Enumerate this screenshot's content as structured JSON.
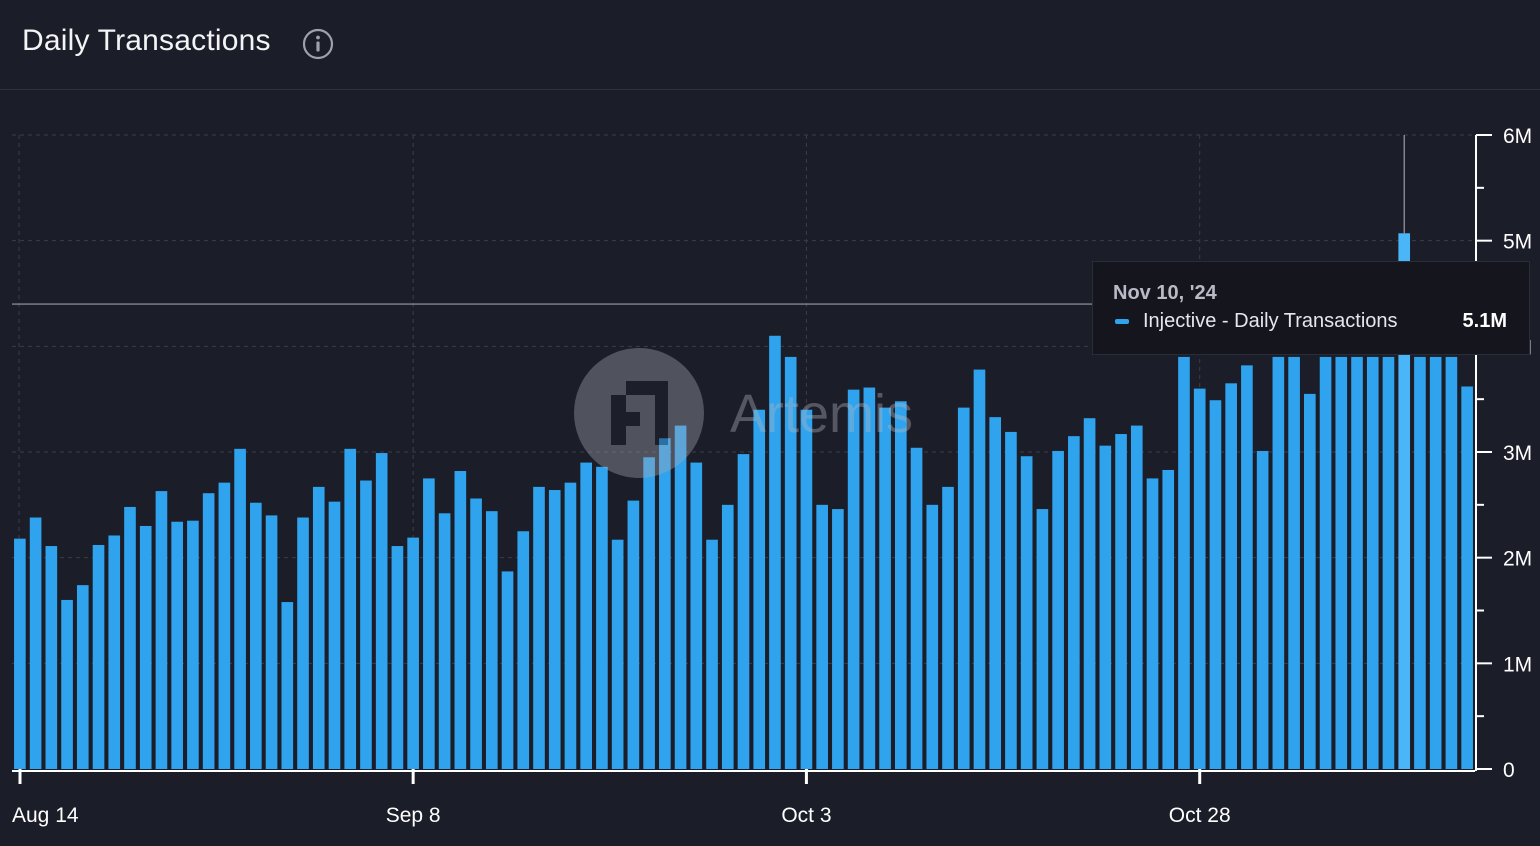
{
  "header": {
    "title": "Daily Transactions",
    "info_icon": "info-icon"
  },
  "watermark": {
    "text": "Artemis",
    "icon": "artemis-logo-icon"
  },
  "tooltip": {
    "date": "Nov 10, '24",
    "series_label": "Injective - Daily Transactions",
    "value": "5.1M"
  },
  "colors": {
    "background": "#1b1d29",
    "bar": "#2fa3ee",
    "bar_hover": "#4ab6f7",
    "grid": "#3a3d4a",
    "axis": "#ffffff",
    "text": "#ffffff"
  },
  "chart_data": {
    "type": "bar",
    "title": "Daily Transactions",
    "series": [
      {
        "name": "Injective - Daily Transactions",
        "values": [
          2.18,
          2.38,
          2.11,
          1.6,
          1.74,
          2.12,
          2.21,
          2.48,
          2.3,
          2.63,
          2.34,
          2.35,
          2.61,
          2.71,
          3.03,
          2.52,
          2.4,
          1.58,
          2.38,
          2.67,
          2.53,
          3.03,
          2.73,
          2.99,
          2.11,
          2.19,
          2.75,
          2.42,
          2.82,
          2.56,
          2.44,
          1.87,
          2.25,
          2.67,
          2.64,
          2.71,
          2.9,
          2.86,
          2.17,
          2.54,
          2.95,
          3.13,
          3.25,
          2.9,
          2.17,
          2.5,
          2.98,
          3.4,
          4.1,
          3.9,
          3.4,
          2.5,
          2.46,
          3.59,
          3.61,
          3.42,
          3.48,
          3.04,
          2.5,
          2.67,
          3.42,
          3.78,
          3.33,
          3.19,
          2.96,
          2.46,
          3.01,
          3.15,
          3.32,
          3.06,
          3.17,
          3.25,
          2.75,
          2.83,
          3.9,
          3.6,
          3.49,
          3.65,
          3.82,
          3.01,
          3.9,
          3.9,
          3.55,
          3.9,
          3.9,
          3.9,
          3.9,
          3.9,
          5.07,
          3.9,
          3.9,
          3.9,
          3.62
        ]
      }
    ],
    "x_ticks": [
      "Aug 14",
      "Sep 8",
      "Oct 3",
      "Oct 28"
    ],
    "x_tick_indices": [
      0,
      25,
      50,
      75
    ],
    "y_ticks": [
      "0",
      "1M",
      "2M",
      "3M",
      "4M",
      "5M",
      "6M"
    ],
    "y_tick_values": [
      0,
      1,
      2,
      3,
      4,
      5,
      6
    ],
    "ylim": [
      0,
      6
    ],
    "hover_index": 88,
    "crosshair_value": 4.4,
    "grid": true
  }
}
